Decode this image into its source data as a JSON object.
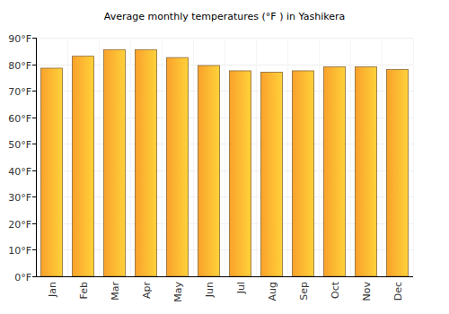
{
  "chart_data": {
    "type": "bar",
    "title": "Average monthly temperatures (°F ) in Yashikera",
    "categories": [
      "Jan",
      "Feb",
      "Mar",
      "Apr",
      "May",
      "Jun",
      "Jul",
      "Aug",
      "Sep",
      "Oct",
      "Nov",
      "Dec"
    ],
    "values": [
      78.5,
      83,
      85.5,
      85.5,
      82.5,
      79.5,
      77.5,
      77,
      77.5,
      79,
      79,
      78
    ],
    "color": "#f9a12b",
    "ylim": [
      0,
      90
    ],
    "yticks": [
      {
        "value": 0,
        "label": "0°F"
      },
      {
        "value": 10,
        "label": "10°F"
      },
      {
        "value": 20,
        "label": "20°F"
      },
      {
        "value": 30,
        "label": "30°F"
      },
      {
        "value": 40,
        "label": "40°F"
      },
      {
        "value": 50,
        "label": "50°F"
      },
      {
        "value": 60,
        "label": "60°F"
      },
      {
        "value": 70,
        "label": "70°F"
      },
      {
        "value": 80,
        "label": "80°F"
      },
      {
        "value": 90,
        "label": "90°F"
      }
    ],
    "grid": true
  }
}
